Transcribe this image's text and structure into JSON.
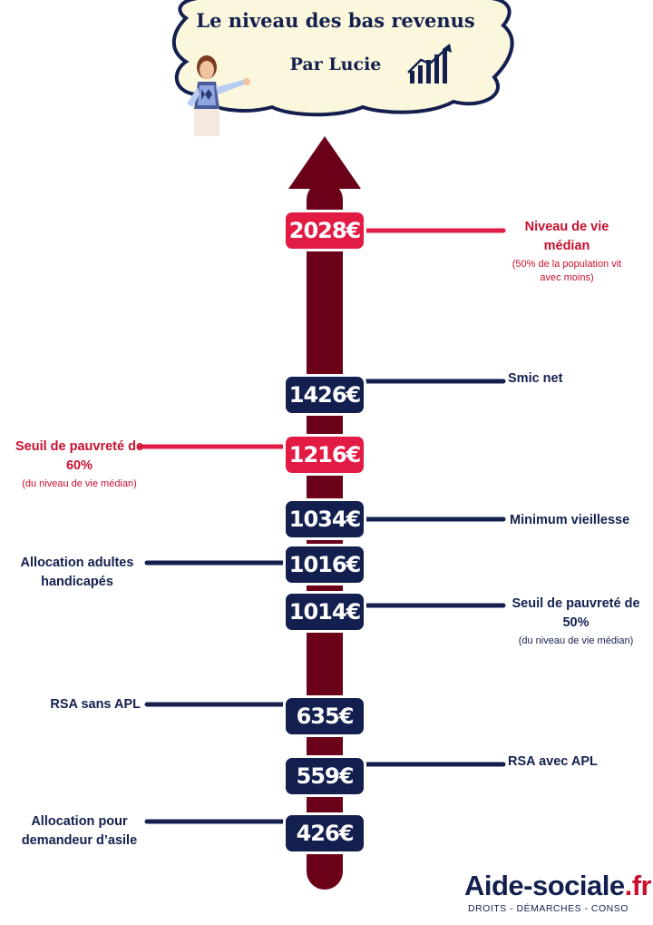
{
  "header": {
    "title": "Le niveau des bas revenus",
    "subtitle": "Par Lucie"
  },
  "colors": {
    "navy": "#13204f",
    "red": "#e21b45",
    "arrow": "#6b0019",
    "cloud": "#fbf7dc"
  },
  "items": [
    {
      "amount": "2028€",
      "label": "Niveau de vie médian",
      "note": "(50% de la population vit avec moins)",
      "side": "right",
      "color": "red"
    },
    {
      "amount": "1426€",
      "label": "Smic net",
      "note": "",
      "side": "right",
      "color": "navy"
    },
    {
      "amount": "1216€",
      "label": "Seuil de pauvreté de 60%",
      "note": "(du niveau de vie médian)",
      "side": "left",
      "color": "red"
    },
    {
      "amount": "1034€",
      "label": "Minimum vieillesse",
      "note": "",
      "side": "right",
      "color": "navy"
    },
    {
      "amount": "1016€",
      "label": "Allocation adultes handicapés",
      "note": "",
      "side": "left",
      "color": "navy"
    },
    {
      "amount": "1014€",
      "label": "Seuil de pauvreté de 50%",
      "note": "(du niveau de vie médian)",
      "side": "right",
      "color": "navy"
    },
    {
      "amount": "635€",
      "label": "RSA sans APL",
      "note": "",
      "side": "left",
      "color": "navy"
    },
    {
      "amount": "559€",
      "label": "RSA avec APL",
      "note": "",
      "side": "right",
      "color": "navy"
    },
    {
      "amount": "426€",
      "label": "Allocation pour demandeur d’asile",
      "note": "",
      "side": "left",
      "color": "navy"
    }
  ],
  "footer": {
    "brand_main": "Aide-sociale",
    "brand_tld": ".fr",
    "tagline": "DROITS - DÉMARCHES - CONSO"
  }
}
